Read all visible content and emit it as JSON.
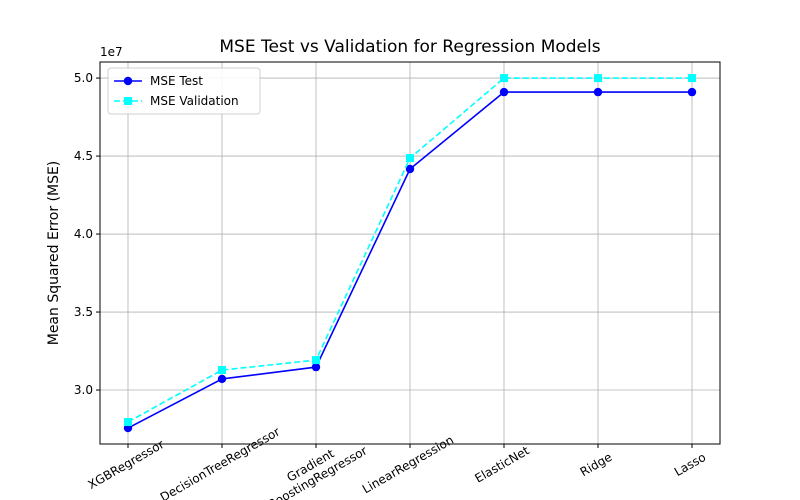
{
  "chart_data": {
    "type": "line",
    "title": "MSE Test vs Validation for Regression Models",
    "ylabel": "Mean Squared Error (MSE)",
    "y_offset_label": "1e7",
    "categories": [
      "XGBRegressor",
      "DecisionTreeRegressor",
      "Gradient\nBoostingRegressor",
      "LinearRegression",
      "ElasticNet",
      "Ridge",
      "Lasso"
    ],
    "series": [
      {
        "name": "MSE Test",
        "color": "#0000ff",
        "marker": "circle",
        "linestyle": "solid",
        "values": [
          27560000,
          30710000,
          31470000,
          44170000,
          49100000,
          49100000,
          49100000
        ]
      },
      {
        "name": "MSE Validation",
        "color": "#00ffff",
        "marker": "square",
        "linestyle": "dashed",
        "values": [
          27950000,
          31280000,
          31920000,
          44870000,
          50000000,
          50000000,
          50000000
        ]
      }
    ],
    "ylim": [
      26540000,
      51030000
    ],
    "yticks": [
      {
        "value": 30000000,
        "label": "3.0"
      },
      {
        "value": 35000000,
        "label": "3.5"
      },
      {
        "value": 40000000,
        "label": "4.0"
      },
      {
        "value": 45000000,
        "label": "4.5"
      },
      {
        "value": 50000000,
        "label": "5.0"
      }
    ],
    "grid": true,
    "legend": "upper left"
  }
}
